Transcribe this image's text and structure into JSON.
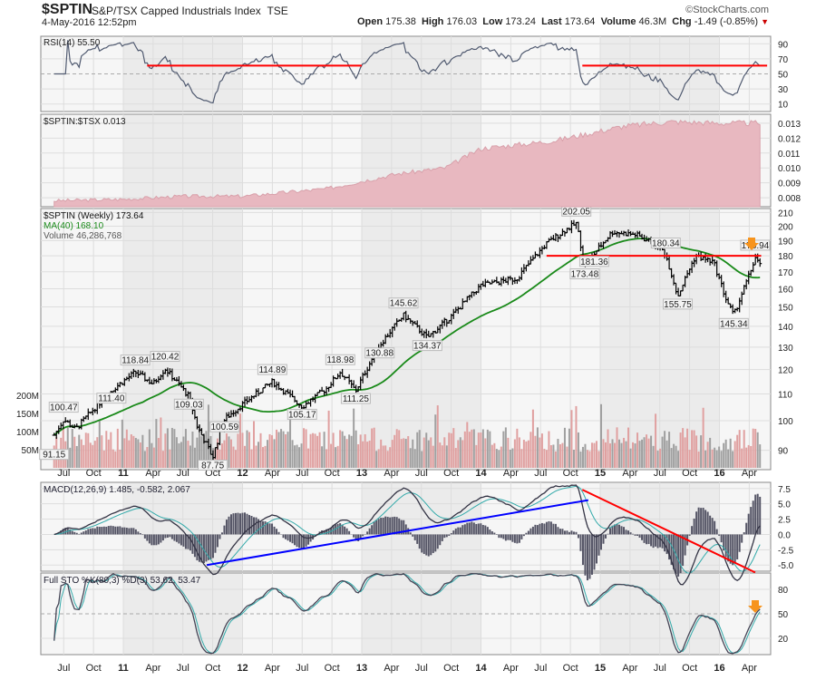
{
  "header": {
    "symbol": "$SPTIN",
    "name": "S&P/TSX Capped Industrials Index",
    "exchange": "TSE",
    "date": "4-May-2016 12:52pm",
    "copyright": "©StockCharts.com",
    "open_label": "Open",
    "open": "175.38",
    "high_label": "High",
    "high": "176.03",
    "low_label": "Low",
    "low": "173.24",
    "last_label": "Last",
    "last": "173.64",
    "volume_label": "Volume",
    "volume": "46.3M",
    "chg_label": "Chg",
    "chg": "-1.49 (-0.85%)",
    "chg_icon": "triangle-down-icon"
  },
  "colors": {
    "price": "#000000",
    "ma": "#1a8a1a",
    "volume_up": "#e0a0a0",
    "volume_down": "#a0a0a0",
    "rsi": "#505a70",
    "ratio": "#e8b8c0",
    "trend_red": "#ff0000",
    "trend_blue": "#0000ff",
    "arrow": "#f7941d"
  },
  "chart_data": [
    {
      "type": "line",
      "panel": "RSI",
      "legend": "RSI(14) 55.50",
      "yticks": [
        "90",
        "70",
        "50",
        "30",
        "10"
      ],
      "ylim": [
        0,
        100
      ],
      "resistance": 61,
      "resistance_segments": [
        [
          2011.2,
          2013.0
        ],
        [
          2014.85,
          2016.4
        ]
      ]
    },
    {
      "type": "area",
      "panel": "ratio",
      "legend": "$SPTIN:$TSX 0.013",
      "yticks": [
        "0.013",
        "0.012",
        "0.011",
        "0.010",
        "0.009",
        "0.008"
      ],
      "ylim": [
        0.0074,
        0.0136
      ],
      "anchors": [
        [
          2010.42,
          0.0078
        ],
        [
          2011.0,
          0.0079
        ],
        [
          2011.5,
          0.0081
        ],
        [
          2012.0,
          0.0081
        ],
        [
          2012.7,
          0.0086
        ],
        [
          2013.3,
          0.0096
        ],
        [
          2013.7,
          0.01
        ],
        [
          2014.0,
          0.0113
        ],
        [
          2014.6,
          0.0118
        ],
        [
          2014.9,
          0.0123
        ],
        [
          2015.2,
          0.0128
        ],
        [
          2015.6,
          0.0131
        ],
        [
          2016.0,
          0.013
        ],
        [
          2016.35,
          0.013
        ]
      ]
    },
    {
      "type": "ohlc",
      "panel": "price",
      "legend_price": "$SPTIN (Weekly) 173.64",
      "legend_ma": "MA(40) 168.10",
      "legend_volume": "Volume 46,286,768",
      "yticks": [
        "210",
        "200",
        "190",
        "180",
        "170",
        "160",
        "150",
        "140",
        "130",
        "120",
        "110",
        "100",
        "90"
      ],
      "volume_ticks": [
        "200M",
        "150M",
        "100M",
        "50M"
      ],
      "ylim": [
        84,
        213
      ],
      "anchors": [
        [
          2010.42,
          95
        ],
        [
          2010.5,
          100.47
        ],
        [
          2010.6,
          97
        ],
        [
          2010.9,
          111.4
        ],
        [
          2011.1,
          118.84
        ],
        [
          2011.25,
          114
        ],
        [
          2011.35,
          120.42
        ],
        [
          2011.55,
          109.03
        ],
        [
          2011.62,
          98
        ],
        [
          2011.75,
          87.75
        ],
        [
          2011.85,
          100.59
        ],
        [
          2012.0,
          106
        ],
        [
          2012.25,
          114.89
        ],
        [
          2012.5,
          105.17
        ],
        [
          2012.7,
          112
        ],
        [
          2012.82,
          118.98
        ],
        [
          2012.95,
          111.25
        ],
        [
          2013.15,
          130.88
        ],
        [
          2013.35,
          145.62
        ],
        [
          2013.55,
          134.37
        ],
        [
          2013.75,
          145
        ],
        [
          2014.0,
          162
        ],
        [
          2014.3,
          166
        ],
        [
          2014.55,
          188
        ],
        [
          2014.72,
          198
        ],
        [
          2014.8,
          202.05
        ],
        [
          2014.87,
          173.48
        ],
        [
          2014.95,
          181.36
        ],
        [
          2015.1,
          196
        ],
        [
          2015.3,
          194
        ],
        [
          2015.5,
          186
        ],
        [
          2015.55,
          180.34
        ],
        [
          2015.65,
          155.75
        ],
        [
          2015.8,
          180
        ],
        [
          2015.95,
          176
        ],
        [
          2016.05,
          155
        ],
        [
          2016.12,
          145.34
        ],
        [
          2016.25,
          168
        ],
        [
          2016.3,
          178.94
        ],
        [
          2016.34,
          173.64
        ]
      ],
      "annotations": [
        [
          "100.47",
          2010.5,
          100.47
        ],
        [
          "91.15",
          2010.42,
          91.15
        ],
        [
          "118.84",
          2011.1,
          118.84
        ],
        [
          "111.40",
          2010.9,
          111.4
        ],
        [
          "120.42",
          2011.35,
          120.42
        ],
        [
          "109.03",
          2011.55,
          109.03
        ],
        [
          "87.75",
          2011.75,
          87.75
        ],
        [
          "100.59",
          2011.85,
          100.59
        ],
        [
          "114.89",
          2012.25,
          114.89
        ],
        [
          "105.17",
          2012.5,
          105.17
        ],
        [
          "118.98",
          2012.82,
          118.98
        ],
        [
          "111.25",
          2012.95,
          111.25
        ],
        [
          "145.62",
          2013.35,
          145.62
        ],
        [
          "130.88",
          2013.15,
          130.88
        ],
        [
          "134.37",
          2013.55,
          134.37
        ],
        [
          "202.05",
          2014.8,
          202.05
        ],
        [
          "173.48",
          2014.87,
          173.48
        ],
        [
          "181.36",
          2014.95,
          181.36
        ],
        [
          "180.34",
          2015.55,
          180.34
        ],
        [
          "155.75",
          2015.65,
          155.75
        ],
        [
          "145.34",
          2016.12,
          145.34
        ],
        [
          "178.94",
          2016.3,
          178.94
        ]
      ],
      "resistance": [
        2014.55,
        2016.35,
        180
      ]
    },
    {
      "type": "line",
      "panel": "MACD",
      "legend": "MACD(12,26,9) 1.485, -0.582, 2.067",
      "yticks": [
        "7.5",
        "5.0",
        "2.5",
        "0.0",
        "-2.5",
        "-5.0"
      ],
      "ylim": [
        -6,
        8.5
      ],
      "blue_trendline": [
        [
          2011.7,
          -5.0
        ],
        [
          2014.9,
          5.6
        ]
      ],
      "red_trendline": [
        [
          2014.85,
          7.3
        ],
        [
          2016.3,
          -6.2
        ]
      ]
    },
    {
      "type": "line",
      "panel": "STO",
      "legend": "Full STO %K(80,3) %D(3) 53.62, 53.47",
      "yticks": [
        "80",
        "50",
        "20"
      ],
      "ylim": [
        0,
        100
      ]
    }
  ],
  "xaxis": {
    "labels": [
      [
        "Jul",
        2010.5
      ],
      [
        "Oct",
        2010.75
      ],
      [
        "11",
        2011.0
      ],
      [
        "Apr",
        2011.25
      ],
      [
        "Jul",
        2011.5
      ],
      [
        "Oct",
        2011.75
      ],
      [
        "12",
        2012.0
      ],
      [
        "Apr",
        2012.25
      ],
      [
        "Jul",
        2012.5
      ],
      [
        "Oct",
        2012.75
      ],
      [
        "13",
        2013.0
      ],
      [
        "Apr",
        2013.25
      ],
      [
        "Jul",
        2013.5
      ],
      [
        "Oct",
        2013.75
      ],
      [
        "14",
        2014.0
      ],
      [
        "Apr",
        2014.25
      ],
      [
        "Jul",
        2014.5
      ],
      [
        "Oct",
        2014.75
      ],
      [
        "15",
        2015.0
      ],
      [
        "Apr",
        2015.25
      ],
      [
        "Jul",
        2015.5
      ],
      [
        "Oct",
        2015.75
      ],
      [
        "16",
        2016.0
      ],
      [
        "Apr",
        2016.25
      ]
    ]
  }
}
